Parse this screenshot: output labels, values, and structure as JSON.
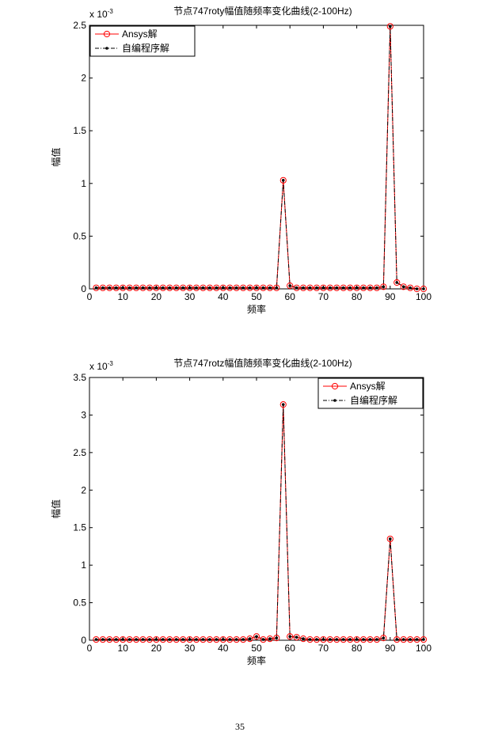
{
  "chart_data": [
    {
      "type": "line",
      "title": "节点747roty幅值随频率变化曲线(2-100Hz)",
      "x_label": "频率",
      "y_label": "幅值",
      "y_exponent": {
        "base": "x 10",
        "power": "-3"
      },
      "legend": "upper left",
      "x": [
        2,
        4,
        6,
        8,
        10,
        12,
        14,
        16,
        18,
        20,
        22,
        24,
        26,
        28,
        30,
        32,
        34,
        36,
        38,
        40,
        42,
        44,
        46,
        48,
        50,
        52,
        54,
        56,
        58,
        60,
        62,
        64,
        66,
        68,
        70,
        72,
        74,
        76,
        78,
        80,
        82,
        84,
        86,
        88,
        90,
        92,
        94,
        96,
        98,
        100
      ],
      "series": [
        {
          "name": "Ansys解",
          "color": "#ff0000",
          "values": [
            0.01,
            0.01,
            0.01,
            0.01,
            0.01,
            0.01,
            0.01,
            0.01,
            0.01,
            0.01,
            0.01,
            0.01,
            0.01,
            0.01,
            0.01,
            0.01,
            0.01,
            0.01,
            0.01,
            0.01,
            0.01,
            0.01,
            0.01,
            0.01,
            0.01,
            0.01,
            0.01,
            0.01,
            1.03,
            0.03,
            0.01,
            0.01,
            0.01,
            0.01,
            0.01,
            0.01,
            0.01,
            0.01,
            0.01,
            0.01,
            0.01,
            0.01,
            0.01,
            0.02,
            2.49,
            0.06,
            0.02,
            0.01,
            0,
            0
          ]
        },
        {
          "name": "自编程序解",
          "color": "#000000",
          "values": [
            0.01,
            0.01,
            0.01,
            0.01,
            0.01,
            0.01,
            0.01,
            0.01,
            0.01,
            0.01,
            0.01,
            0.01,
            0.01,
            0.01,
            0.01,
            0.01,
            0.01,
            0.01,
            0.01,
            0.01,
            0.01,
            0.01,
            0.01,
            0.01,
            0.01,
            0.01,
            0.01,
            0.01,
            1.03,
            0.03,
            0.01,
            0.01,
            0.01,
            0.01,
            0.01,
            0.01,
            0.01,
            0.01,
            0.01,
            0.01,
            0.01,
            0.01,
            0.01,
            0.02,
            2.49,
            0.06,
            0.02,
            0.01,
            0,
            0
          ]
        }
      ],
      "xlim": [
        0,
        100
      ],
      "xticks": [
        0,
        10,
        20,
        30,
        40,
        50,
        60,
        70,
        80,
        90,
        100
      ],
      "ylim": [
        0,
        2.5
      ],
      "yticks": [
        0,
        0.5,
        1,
        1.5,
        2,
        2.5
      ]
    },
    {
      "type": "line",
      "title": "节点747rotz幅值随频率变化曲线(2-100Hz)",
      "x_label": "频率",
      "y_label": "幅值",
      "y_exponent": {
        "base": "x 10",
        "power": "-3"
      },
      "legend": "upper right",
      "x": [
        2,
        4,
        6,
        8,
        10,
        12,
        14,
        16,
        18,
        20,
        22,
        24,
        26,
        28,
        30,
        32,
        34,
        36,
        38,
        40,
        42,
        44,
        46,
        48,
        50,
        52,
        54,
        56,
        58,
        60,
        62,
        64,
        66,
        68,
        70,
        72,
        74,
        76,
        78,
        80,
        82,
        84,
        86,
        88,
        90,
        92,
        94,
        96,
        98,
        100
      ],
      "series": [
        {
          "name": "Ansys解",
          "color": "#ff0000",
          "values": [
            0.01,
            0.01,
            0.01,
            0.01,
            0.01,
            0.01,
            0.01,
            0.01,
            0.01,
            0.01,
            0.01,
            0.01,
            0.01,
            0.01,
            0.01,
            0.01,
            0.01,
            0.01,
            0.01,
            0.01,
            0.01,
            0.01,
            0.01,
            0.02,
            0.05,
            0.01,
            0.02,
            0.03,
            3.14,
            0.05,
            0.04,
            0.02,
            0.01,
            0.01,
            0.01,
            0.01,
            0.01,
            0.01,
            0.01,
            0.01,
            0.01,
            0.01,
            0.01,
            0.03,
            1.35,
            0.01,
            0.01,
            0.01,
            0.01,
            0.01
          ]
        },
        {
          "name": "自编程序解",
          "color": "#000000",
          "values": [
            0.01,
            0.01,
            0.01,
            0.01,
            0.01,
            0.01,
            0.01,
            0.01,
            0.01,
            0.01,
            0.01,
            0.01,
            0.01,
            0.01,
            0.01,
            0.01,
            0.01,
            0.01,
            0.01,
            0.01,
            0.01,
            0.01,
            0.01,
            0.02,
            0.05,
            0.01,
            0.02,
            0.03,
            3.14,
            0.05,
            0.04,
            0.02,
            0.01,
            0.01,
            0.01,
            0.01,
            0.01,
            0.01,
            0.01,
            0.01,
            0.01,
            0.01,
            0.01,
            0.03,
            1.35,
            0.01,
            0.01,
            0.01,
            0.01,
            0.01
          ]
        }
      ],
      "xlim": [
        0,
        100
      ],
      "xticks": [
        0,
        10,
        20,
        30,
        40,
        50,
        60,
        70,
        80,
        90,
        100
      ],
      "ylim": [
        0,
        3.5
      ],
      "yticks": [
        0,
        0.5,
        1,
        1.5,
        2,
        2.5,
        3,
        3.5
      ]
    }
  ],
  "page_number": "35"
}
